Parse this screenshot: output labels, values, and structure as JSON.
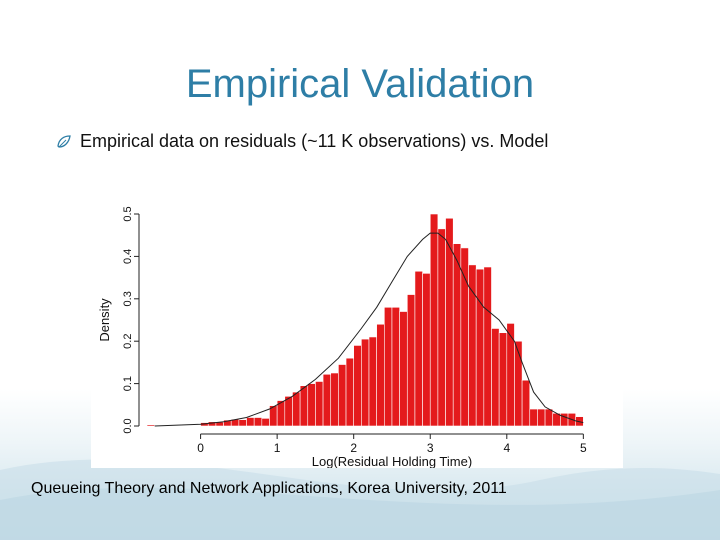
{
  "slide": {
    "title": "Empirical Validation",
    "bullet": "Empirical data on residuals (~11 K observations) vs. Model",
    "footer": "Queueing Theory and Network Applications, Korea University, 2011",
    "accent_color": "#2e7ea6",
    "bullet_icon": "leaf-bullet-icon"
  },
  "chart_data": {
    "type": "bar",
    "xlabel": "Log(Residual Holding Time)",
    "ylabel": "Density",
    "xlim": [
      -0.7,
      5.1
    ],
    "ylim": [
      0.0,
      0.5
    ],
    "x_ticks": [
      0,
      1,
      2,
      3,
      4,
      5
    ],
    "y_ticks": [
      "0.0",
      "0.1",
      "0.2",
      "0.3",
      "0.4",
      "0.5"
    ],
    "bar_color": "#e41a1c",
    "bar_width": 0.1,
    "bars": {
      "x": [
        -0.65,
        0.05,
        0.15,
        0.25,
        0.35,
        0.45,
        0.55,
        0.65,
        0.75,
        0.85,
        0.95,
        1.05,
        1.15,
        1.25,
        1.35,
        1.45,
        1.55,
        1.65,
        1.75,
        1.85,
        1.95,
        2.05,
        2.15,
        2.25,
        2.35,
        2.45,
        2.55,
        2.65,
        2.75,
        2.85,
        2.95,
        3.05,
        3.15,
        3.25,
        3.35,
        3.45,
        3.55,
        3.65,
        3.75,
        3.85,
        3.95,
        4.05,
        4.15,
        4.25,
        4.35,
        4.45,
        4.55,
        4.65,
        4.75,
        4.85,
        4.95
      ],
      "values": [
        0.003,
        0.008,
        0.01,
        0.009,
        0.014,
        0.016,
        0.015,
        0.02,
        0.02,
        0.018,
        0.048,
        0.06,
        0.07,
        0.08,
        0.095,
        0.1,
        0.105,
        0.122,
        0.125,
        0.145,
        0.16,
        0.19,
        0.205,
        0.21,
        0.24,
        0.28,
        0.28,
        0.27,
        0.31,
        0.365,
        0.36,
        0.5,
        0.465,
        0.49,
        0.43,
        0.42,
        0.38,
        0.37,
        0.375,
        0.23,
        0.22,
        0.242,
        0.2,
        0.108,
        0.04,
        0.04,
        0.04,
        0.03,
        0.03,
        0.03,
        0.022
      ]
    },
    "model_curve": {
      "x": [
        -0.6,
        0.0,
        0.3,
        0.6,
        0.9,
        1.2,
        1.5,
        1.8,
        2.1,
        2.3,
        2.5,
        2.7,
        2.9,
        3.0,
        3.1,
        3.2,
        3.35,
        3.5,
        3.7,
        3.9,
        4.1,
        4.2,
        4.35,
        4.5,
        4.7,
        4.9,
        5.0
      ],
      "y": [
        0.0,
        0.004,
        0.01,
        0.02,
        0.04,
        0.07,
        0.11,
        0.16,
        0.23,
        0.28,
        0.34,
        0.4,
        0.44,
        0.455,
        0.455,
        0.44,
        0.39,
        0.33,
        0.28,
        0.25,
        0.2,
        0.15,
        0.08,
        0.045,
        0.025,
        0.012,
        0.008
      ]
    }
  }
}
